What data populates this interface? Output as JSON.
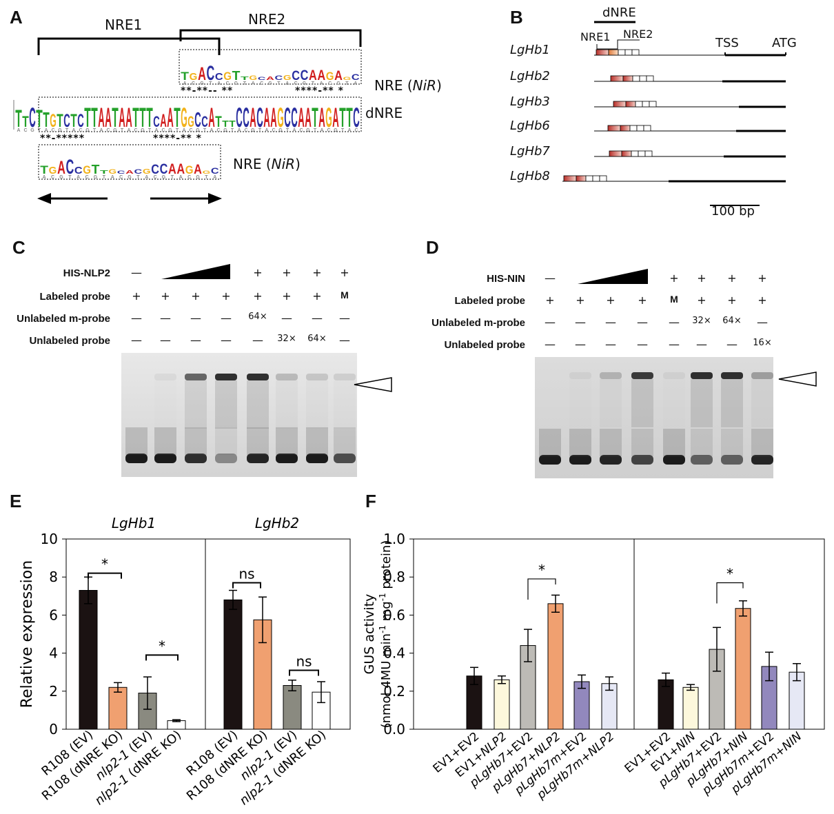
{
  "panels": {
    "A": "A",
    "B": "B",
    "C": "C",
    "D": "D",
    "E": "E",
    "F": "F"
  },
  "panelA": {
    "nre1": "NRE1",
    "nre2": "NRE2",
    "row_top_label": "NRE (",
    "row_top_italic": "NiR",
    "row_top_close": ")",
    "row_mid_label": "dNRE",
    "row_bot_label": "NRE (",
    "row_bot_italic": "NiR",
    "row_bot_close": ")",
    "stars_top": "**-**-- **",
    "stars_top2": "****-** *",
    "stars_bot": "**-*****",
    "stars_bot2": "****-** *",
    "logo_top": "TGACCGTTGCACGCCAAGAGC",
    "logo_mid": "TTCTTGTCTCTTAATAATTTCAATGGCCATTTCCACAAGCCAATAGATTC",
    "logo_bot": "TGACCGTTGCACGCCAAGAGC"
  },
  "panelB": {
    "dnre": "dNRE",
    "nre1": "NRE1",
    "nre2": "NRE2",
    "tss": "TSS",
    "atg": "ATG",
    "scale": "100 bp",
    "genes": [
      "LgHb1",
      "LgHb2",
      "LgHb3",
      "LgHb6",
      "LgHb7",
      "LgHb8"
    ]
  },
  "panelC": {
    "rows": [
      {
        "label": "HIS-NLP2",
        "cells": [
          "—",
          "",
          "",
          "",
          "+",
          "+",
          "+",
          "+"
        ]
      },
      {
        "label": "Labeled probe",
        "cells": [
          "+",
          "+",
          "+",
          "+",
          "+",
          "+",
          "+",
          "M"
        ]
      },
      {
        "label": "Unlabeled m-probe",
        "cells": [
          "—",
          "—",
          "—",
          "—",
          "64×",
          "—",
          "—",
          "—"
        ]
      },
      {
        "label": "Unlabeled probe",
        "cells": [
          "—",
          "—",
          "—",
          "—",
          "—",
          "32×",
          "64×",
          "—"
        ]
      }
    ]
  },
  "panelD": {
    "rows": [
      {
        "label": "HIS-NIN",
        "cells": [
          "—",
          "",
          "",
          "",
          "+",
          "+",
          "+",
          "+"
        ]
      },
      {
        "label": "Labeled probe",
        "cells": [
          "+",
          "+",
          "+",
          "+",
          "M",
          "+",
          "+",
          "+"
        ]
      },
      {
        "label": "Unlabeled m-probe",
        "cells": [
          "—",
          "—",
          "—",
          "—",
          "—",
          "32×",
          "64×",
          "—"
        ]
      },
      {
        "label": "Unlabeled probe",
        "cells": [
          "—",
          "—",
          "—",
          "—",
          "—",
          "—",
          "—",
          "16×"
        ]
      }
    ]
  },
  "panelE": {
    "ylabel": "Relative expression",
    "yticks": [
      "10",
      "8",
      "6",
      "4",
      "2",
      "0"
    ],
    "sub1": "LgHb1",
    "sub2": "LgHb2",
    "sig1": "*",
    "sig2": "*",
    "sig3": "ns",
    "sig4": "ns",
    "xlabels": [
      "R108 (EV)",
      "R108 (dNRE KO)",
      "nlp2-1 (EV)",
      "nlp2-1 (dNRE KO)"
    ],
    "colors": [
      "#1b1212",
      "#f0a070",
      "#8a8a80",
      "#ffffff"
    ]
  },
  "panelF": {
    "ylabel1": "GUS activity",
    "ylabel2": "(nmol 4MU min",
    "yticks": [
      "1.0",
      "0.8",
      "0.6",
      "0.4",
      "0.2",
      "0.0"
    ],
    "sig1": "*",
    "sig2": "*",
    "xlabels_left": [
      "EV1+EV2",
      "EV1+NLP2",
      "pLgHb7+EV2",
      "pLgHb7+NLP2",
      "pLgHb7m+EV2",
      "pLgHb7m+NLP2"
    ],
    "xlabels_right": [
      "EV1+EV2",
      "EV1+NIN",
      "pLgHb7+EV2",
      "pLgHb7+NIN",
      "pLgHb7m+EV2",
      "pLgHb7m+NIN"
    ],
    "colors": [
      "#1b1212",
      "#fdf8dc",
      "#bdbbb6",
      "#f0a070",
      "#9288bd",
      "#e6e8f5"
    ]
  },
  "chart_data": [
    {
      "type": "bar",
      "ylabel": "Relative expression",
      "ylim": [
        0,
        10
      ],
      "subplots": [
        {
          "title": "LgHb1",
          "categories": [
            "R108 (EV)",
            "R108 (dNRE KO)",
            "nlp2-1 (EV)",
            "nlp2-1 (dNRE KO)"
          ],
          "values": [
            7.3,
            2.2,
            1.9,
            0.45
          ],
          "errors": [
            0.7,
            0.25,
            0.85,
            0.05
          ]
        },
        {
          "title": "LgHb2",
          "categories": [
            "R108 (EV)",
            "R108 (dNRE KO)",
            "nlp2-1 (EV)",
            "nlp2-1 (dNRE KO)"
          ],
          "values": [
            6.8,
            5.75,
            2.3,
            1.95
          ],
          "errors": [
            0.5,
            1.2,
            0.28,
            0.55
          ]
        }
      ]
    },
    {
      "type": "bar",
      "ylabel": "GUS activity (nmol 4MU min-1 mg-1 protein)",
      "ylim": [
        0,
        1.0
      ],
      "subplots": [
        {
          "categories": [
            "EV1+EV2",
            "EV1+NLP2",
            "pLgHb7+EV2",
            "pLgHb7+NLP2",
            "pLgHb7m+EV2",
            "pLgHb7m+NLP2"
          ],
          "values": [
            0.28,
            0.26,
            0.44,
            0.66,
            0.25,
            0.24
          ],
          "errors": [
            0.045,
            0.02,
            0.085,
            0.045,
            0.035,
            0.035
          ]
        },
        {
          "categories": [
            "EV1+EV2",
            "EV1+NIN",
            "pLgHb7+EV2",
            "pLgHb7+NIN",
            "pLgHb7m+EV2",
            "pLgHb7m+NIN"
          ],
          "values": [
            0.26,
            0.22,
            0.42,
            0.635,
            0.33,
            0.3
          ],
          "errors": [
            0.035,
            0.015,
            0.115,
            0.04,
            0.075,
            0.045
          ]
        }
      ]
    }
  ]
}
